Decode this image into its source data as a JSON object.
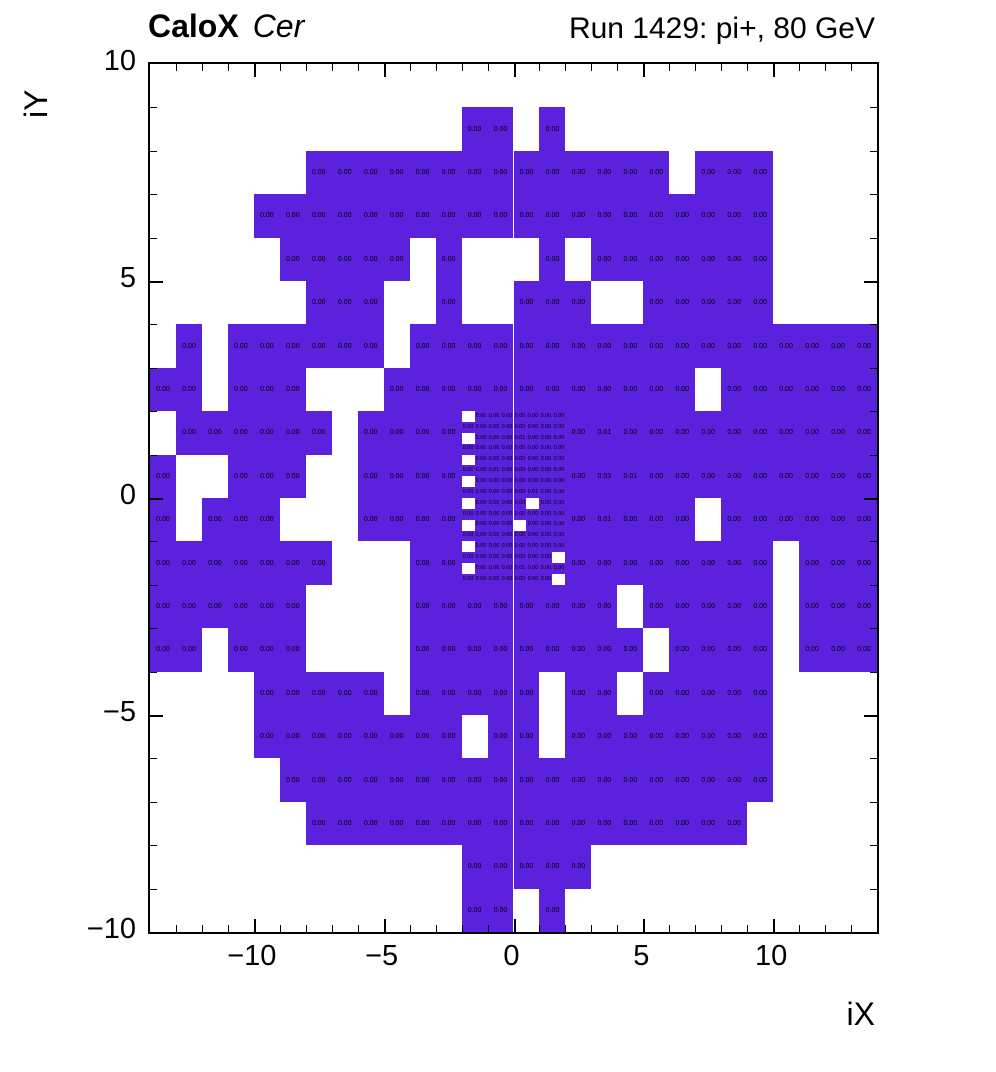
{
  "header": {
    "brand": "CaloX",
    "detector": "Cer",
    "run_title": "Run 1429: pi+, 80 GeV"
  },
  "chart_data": {
    "type": "heatmap",
    "title": "Run 1429: pi+, 80 GeV",
    "xlabel": "iX",
    "ylabel": "iY",
    "x_range": [
      -14,
      14
    ],
    "y_range": [
      -10,
      10
    ],
    "x_ticks": {
      "values": [
        -10,
        -5,
        0,
        5,
        10
      ],
      "labels": [
        "−10",
        "−5",
        "0",
        "5",
        "10"
      ]
    },
    "y_ticks": {
      "values": [
        10,
        5,
        0,
        -5,
        -10
      ],
      "labels": [
        "10",
        "5",
        "0",
        "−5",
        "−10"
      ]
    },
    "grid_lines": false,
    "fill_color": "#5b21dd",
    "cell_text_color": "#000000",
    "value_map": {
      "o": "0.00",
      "a": "0.01",
      "b": "0.03"
    },
    "grid": {
      "x0": -14,
      "y_top": 10,
      "cell_w": 1,
      "cell_h": 1,
      "rows": [
        "............................",
        "............oo.o............",
        "......oooooooooooooo.ooo....",
        "....oooooooooooooooooooo....",
        ".....ooooo.o...o.ooooooo....",
        "......ooo..o..ooo..ooooo....",
        ".o.oooooo.oooooooooooooooooo",
        "oo.ooo...oooooooooooo.oooooo",
        ".oooooo.oooo....oaoooooooooo",
        "o..ooo..oooo....obaooooooooo",
        "o.ooo...oooo....oaooo.oooooo",
        "ooooooo...oo....oooooooo.ooo",
        "oooooo....oooooooo.ooooo.ooo",
        "oo.ooo....ooooooooo.oooo.ooo",
        "....ooooo.ooooo.oo.ooooo....",
        "....oooooooo.oo.oooooooo....",
        ".....ooooooooooooooooooo....",
        "......ooooooooooooooooo.....",
        "............ooooo...........",
        "............oo.o............"
      ]
    },
    "fine_grid": {
      "x0": -2,
      "y_top": 2,
      "cell_w": 0.5,
      "cell_h": 0.25,
      "rows": [
        ".ooooooo",
        "oooooooo",
        ".oooaooo",
        "oooooooo",
        ".ooooooo",
        "ooaooooo",
        ".ooooooo",
        "oooooaoo",
        ".oooo.oo",
        "oooooooo",
        ".ooo.ooo",
        "oooooooo",
        ".ooooooo",
        "ooooooo.",
        ".oooaooo",
        "ooooooo."
      ]
    }
  }
}
